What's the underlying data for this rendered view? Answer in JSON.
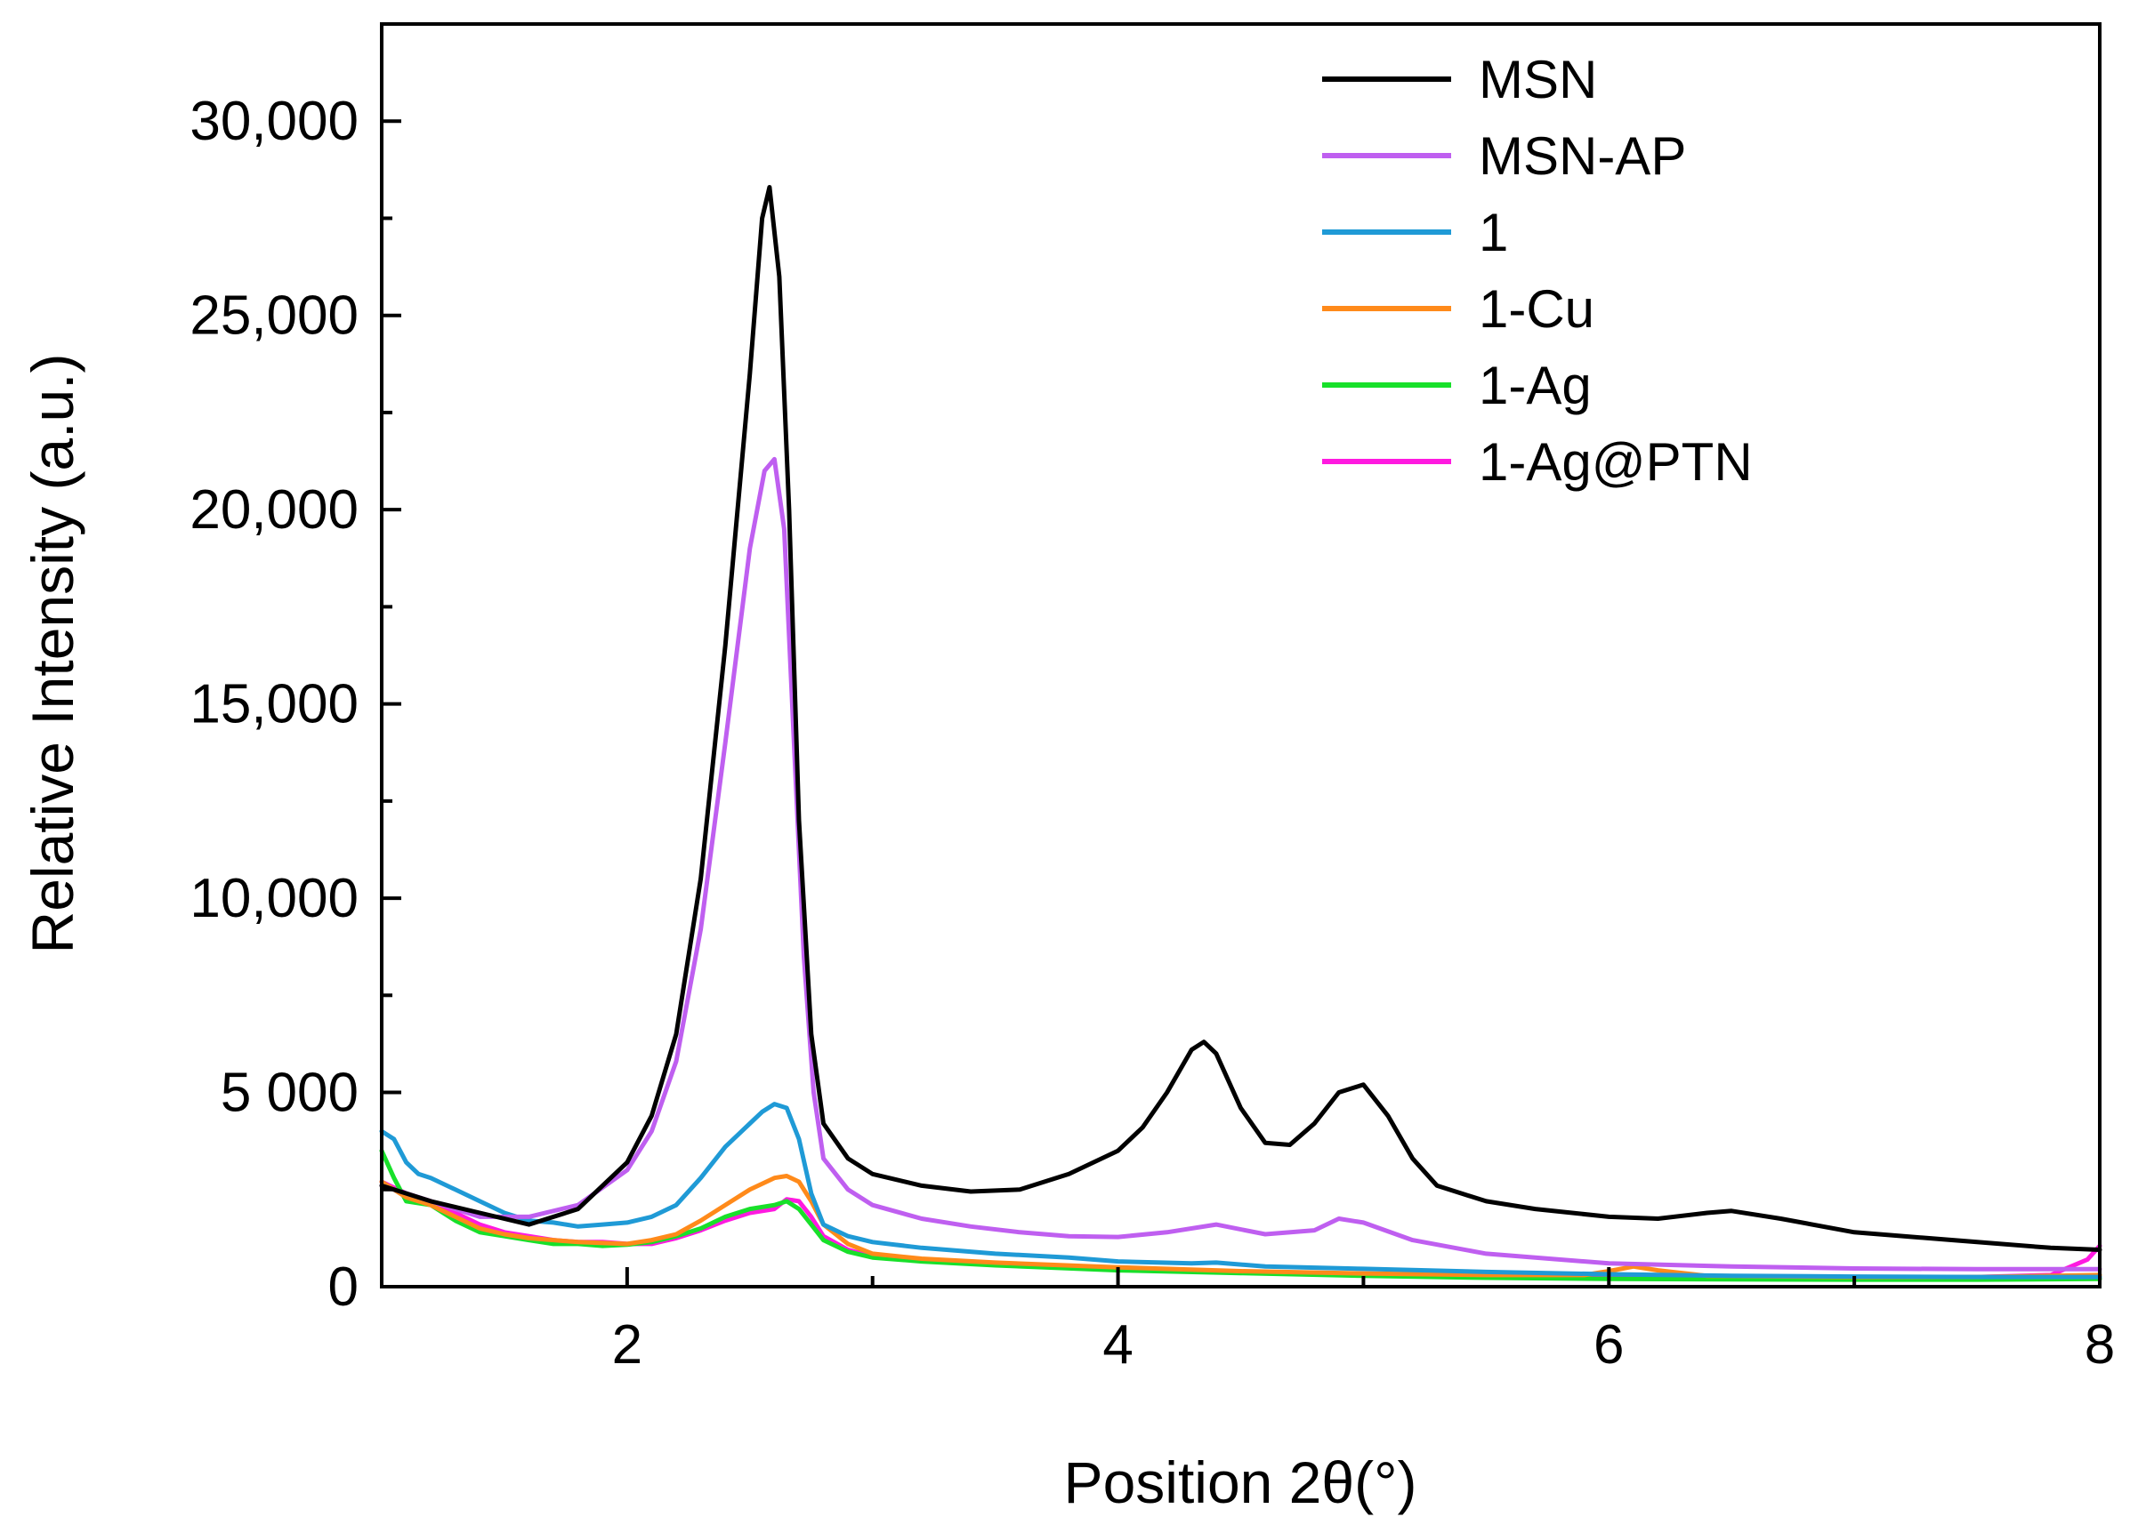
{
  "chart_data": {
    "type": "line",
    "title": "",
    "xlabel": "Position 2θ(°)",
    "ylabel": "Relative Intensity (a.u.)",
    "xlim": [
      1,
      8
    ],
    "ylim": [
      0,
      32500
    ],
    "x_ticks": [
      2,
      4,
      6,
      8
    ],
    "x_tick_labels": [
      "2",
      "4",
      "6",
      "8"
    ],
    "y_ticks": [
      0,
      5000,
      10000,
      15000,
      20000,
      25000,
      30000
    ],
    "y_tick_labels": [
      "0",
      "5 000",
      "10,000",
      "15,000",
      "20,000",
      "25,000",
      "30,000"
    ],
    "grid": false,
    "legend_position": "top-right",
    "series": [
      {
        "name": "MSN",
        "color": "#000000",
        "points": [
          [
            1.0,
            2600
          ],
          [
            1.2,
            2200
          ],
          [
            1.4,
            1900
          ],
          [
            1.6,
            1600
          ],
          [
            1.8,
            2000
          ],
          [
            2.0,
            3200
          ],
          [
            2.1,
            4400
          ],
          [
            2.2,
            6500
          ],
          [
            2.3,
            10500
          ],
          [
            2.4,
            16500
          ],
          [
            2.5,
            23500
          ],
          [
            2.55,
            27500
          ],
          [
            2.58,
            28300
          ],
          [
            2.62,
            26000
          ],
          [
            2.66,
            20000
          ],
          [
            2.7,
            12000
          ],
          [
            2.75,
            6500
          ],
          [
            2.8,
            4200
          ],
          [
            2.9,
            3300
          ],
          [
            3.0,
            2900
          ],
          [
            3.2,
            2600
          ],
          [
            3.4,
            2450
          ],
          [
            3.6,
            2500
          ],
          [
            3.8,
            2900
          ],
          [
            4.0,
            3500
          ],
          [
            4.1,
            4100
          ],
          [
            4.2,
            5000
          ],
          [
            4.3,
            6100
          ],
          [
            4.35,
            6300
          ],
          [
            4.4,
            6000
          ],
          [
            4.5,
            4600
          ],
          [
            4.6,
            3700
          ],
          [
            4.7,
            3650
          ],
          [
            4.8,
            4200
          ],
          [
            4.9,
            5000
          ],
          [
            5.0,
            5200
          ],
          [
            5.1,
            4400
          ],
          [
            5.2,
            3300
          ],
          [
            5.3,
            2600
          ],
          [
            5.5,
            2200
          ],
          [
            5.7,
            2000
          ],
          [
            6.0,
            1800
          ],
          [
            6.2,
            1750
          ],
          [
            6.4,
            1900
          ],
          [
            6.5,
            1950
          ],
          [
            6.7,
            1750
          ],
          [
            7.0,
            1400
          ],
          [
            7.3,
            1250
          ],
          [
            7.5,
            1150
          ],
          [
            7.8,
            1000
          ],
          [
            8.0,
            950
          ]
        ]
      },
      {
        "name": "MSN-AP",
        "color": "#bf5ff0",
        "points": [
          [
            1.0,
            2600
          ],
          [
            1.2,
            2200
          ],
          [
            1.4,
            1800
          ],
          [
            1.6,
            1800
          ],
          [
            1.8,
            2100
          ],
          [
            2.0,
            3000
          ],
          [
            2.1,
            4000
          ],
          [
            2.2,
            5800
          ],
          [
            2.3,
            9200
          ],
          [
            2.4,
            14000
          ],
          [
            2.5,
            19000
          ],
          [
            2.56,
            21000
          ],
          [
            2.6,
            21300
          ],
          [
            2.64,
            19500
          ],
          [
            2.68,
            14000
          ],
          [
            2.72,
            8500
          ],
          [
            2.76,
            5000
          ],
          [
            2.8,
            3300
          ],
          [
            2.9,
            2500
          ],
          [
            3.0,
            2100
          ],
          [
            3.2,
            1750
          ],
          [
            3.4,
            1550
          ],
          [
            3.6,
            1400
          ],
          [
            3.8,
            1300
          ],
          [
            4.0,
            1280
          ],
          [
            4.2,
            1400
          ],
          [
            4.4,
            1600
          ],
          [
            4.6,
            1350
          ],
          [
            4.8,
            1450
          ],
          [
            4.9,
            1750
          ],
          [
            5.0,
            1650
          ],
          [
            5.2,
            1200
          ],
          [
            5.5,
            850
          ],
          [
            6.0,
            600
          ],
          [
            6.5,
            520
          ],
          [
            7.0,
            470
          ],
          [
            7.5,
            450
          ],
          [
            8.0,
            450
          ]
        ]
      },
      {
        "name": "1",
        "color": "#1f9ad6",
        "points": [
          [
            1.0,
            4000
          ],
          [
            1.05,
            3800
          ],
          [
            1.1,
            3200
          ],
          [
            1.15,
            2900
          ],
          [
            1.2,
            2800
          ],
          [
            1.3,
            2500
          ],
          [
            1.4,
            2200
          ],
          [
            1.5,
            1900
          ],
          [
            1.6,
            1700
          ],
          [
            1.7,
            1650
          ],
          [
            1.8,
            1550
          ],
          [
            1.9,
            1600
          ],
          [
            2.0,
            1650
          ],
          [
            2.1,
            1800
          ],
          [
            2.2,
            2100
          ],
          [
            2.3,
            2800
          ],
          [
            2.4,
            3600
          ],
          [
            2.5,
            4200
          ],
          [
            2.55,
            4500
          ],
          [
            2.6,
            4700
          ],
          [
            2.65,
            4600
          ],
          [
            2.7,
            3800
          ],
          [
            2.75,
            2400
          ],
          [
            2.8,
            1600
          ],
          [
            2.9,
            1300
          ],
          [
            3.0,
            1150
          ],
          [
            3.2,
            1000
          ],
          [
            3.5,
            850
          ],
          [
            3.8,
            750
          ],
          [
            4.0,
            650
          ],
          [
            4.3,
            600
          ],
          [
            4.4,
            620
          ],
          [
            4.6,
            520
          ],
          [
            5.0,
            460
          ],
          [
            5.5,
            380
          ],
          [
            6.0,
            320
          ],
          [
            6.5,
            280
          ],
          [
            7.0,
            260
          ],
          [
            7.5,
            250
          ],
          [
            8.0,
            250
          ]
        ]
      },
      {
        "name": "1-Cu",
        "color": "#ff8a1a",
        "points": [
          [
            1.0,
            2700
          ],
          [
            1.1,
            2300
          ],
          [
            1.2,
            2100
          ],
          [
            1.3,
            1800
          ],
          [
            1.4,
            1500
          ],
          [
            1.5,
            1350
          ],
          [
            1.6,
            1250
          ],
          [
            1.8,
            1150
          ],
          [
            2.0,
            1100
          ],
          [
            2.1,
            1200
          ],
          [
            2.2,
            1350
          ],
          [
            2.3,
            1700
          ],
          [
            2.4,
            2100
          ],
          [
            2.5,
            2500
          ],
          [
            2.6,
            2800
          ],
          [
            2.65,
            2850
          ],
          [
            2.7,
            2700
          ],
          [
            2.75,
            2200
          ],
          [
            2.8,
            1600
          ],
          [
            2.9,
            1100
          ],
          [
            3.0,
            850
          ],
          [
            3.2,
            720
          ],
          [
            3.5,
            620
          ],
          [
            4.0,
            500
          ],
          [
            4.5,
            400
          ],
          [
            5.0,
            340
          ],
          [
            5.5,
            300
          ],
          [
            5.9,
            300
          ],
          [
            6.0,
            400
          ],
          [
            6.1,
            520
          ],
          [
            6.2,
            420
          ],
          [
            6.4,
            280
          ],
          [
            7.0,
            250
          ],
          [
            7.5,
            250
          ],
          [
            8.0,
            300
          ]
        ]
      },
      {
        "name": "1-Ag",
        "color": "#18e02a",
        "points": [
          [
            1.0,
            3500
          ],
          [
            1.05,
            2800
          ],
          [
            1.1,
            2200
          ],
          [
            1.2,
            2100
          ],
          [
            1.3,
            1700
          ],
          [
            1.4,
            1400
          ],
          [
            1.5,
            1300
          ],
          [
            1.6,
            1200
          ],
          [
            1.7,
            1100
          ],
          [
            1.8,
            1100
          ],
          [
            1.9,
            1050
          ],
          [
            2.0,
            1080
          ],
          [
            2.1,
            1150
          ],
          [
            2.2,
            1300
          ],
          [
            2.3,
            1500
          ],
          [
            2.4,
            1800
          ],
          [
            2.5,
            2000
          ],
          [
            2.6,
            2100
          ],
          [
            2.65,
            2200
          ],
          [
            2.7,
            2000
          ],
          [
            2.75,
            1600
          ],
          [
            2.8,
            1200
          ],
          [
            2.9,
            900
          ],
          [
            3.0,
            750
          ],
          [
            3.2,
            650
          ],
          [
            3.5,
            550
          ],
          [
            4.0,
            420
          ],
          [
            4.5,
            350
          ],
          [
            5.0,
            280
          ],
          [
            5.5,
            230
          ],
          [
            6.0,
            200
          ],
          [
            6.5,
            190
          ],
          [
            7.0,
            180
          ],
          [
            7.5,
            180
          ],
          [
            8.0,
            200
          ]
        ]
      },
      {
        "name": "1-Ag@PTN",
        "color": "#ff1ae0",
        "points": [
          [
            1.0,
            2700
          ],
          [
            1.1,
            2400
          ],
          [
            1.2,
            2200
          ],
          [
            1.3,
            1900
          ],
          [
            1.4,
            1600
          ],
          [
            1.5,
            1400
          ],
          [
            1.6,
            1300
          ],
          [
            1.7,
            1200
          ],
          [
            1.8,
            1150
          ],
          [
            1.9,
            1150
          ],
          [
            2.0,
            1100
          ],
          [
            2.1,
            1100
          ],
          [
            2.2,
            1250
          ],
          [
            2.3,
            1450
          ],
          [
            2.4,
            1700
          ],
          [
            2.5,
            1900
          ],
          [
            2.6,
            2000
          ],
          [
            2.65,
            2250
          ],
          [
            2.7,
            2200
          ],
          [
            2.75,
            1800
          ],
          [
            2.8,
            1300
          ],
          [
            2.9,
            950
          ],
          [
            3.0,
            780
          ],
          [
            3.2,
            680
          ],
          [
            3.5,
            600
          ],
          [
            4.0,
            450
          ],
          [
            4.5,
            370
          ],
          [
            5.0,
            300
          ],
          [
            5.5,
            250
          ],
          [
            6.0,
            220
          ],
          [
            6.5,
            200
          ],
          [
            7.0,
            210
          ],
          [
            7.5,
            250
          ],
          [
            7.8,
            300
          ],
          [
            7.95,
            700
          ],
          [
            8.0,
            1050
          ]
        ]
      }
    ]
  }
}
